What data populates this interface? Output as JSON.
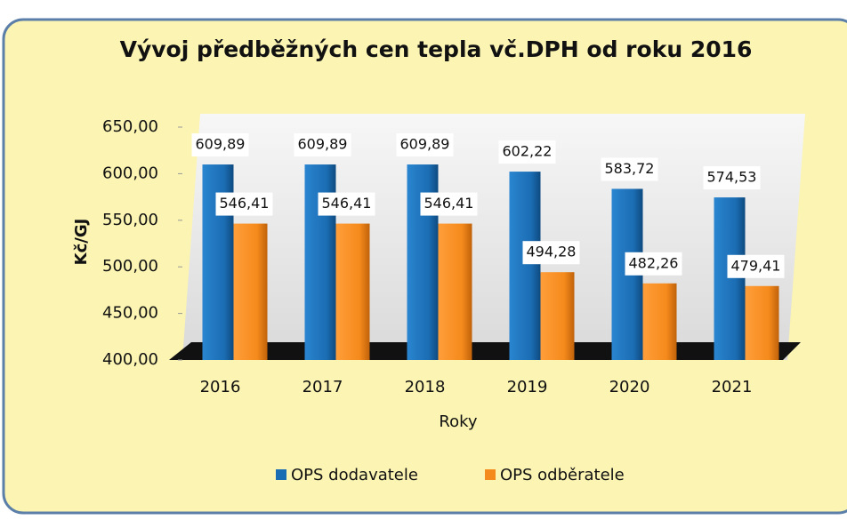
{
  "chart_data": {
    "type": "bar",
    "title": "Vývoj předběžných cen tepla vč.DPH od roku 2016",
    "x_label": "Roky",
    "y_label": "Kč/GJ",
    "categories": [
      "2016",
      "2017",
      "2018",
      "2019",
      "2020",
      "2021"
    ],
    "series": [
      {
        "name": "OPS dodavatele",
        "color": "#1b6db3",
        "values": [
          609.89,
          609.89,
          609.89,
          602.22,
          583.72,
          574.53
        ],
        "value_labels": [
          "609,89",
          "609,89",
          "609,89",
          "602,22",
          "583,72",
          "574,53"
        ]
      },
      {
        "name": "OPS odběratele",
        "color": "#f58a1c",
        "values": [
          546.41,
          546.41,
          546.41,
          494.28,
          482.26,
          479.41
        ],
        "value_labels": [
          "546,41",
          "546,41",
          "546,41",
          "494,28",
          "482,26",
          "479,41"
        ]
      }
    ],
    "ylim": [
      400,
      650
    ],
    "yticks": [
      {
        "value": 400,
        "label": "400,00"
      },
      {
        "value": 450,
        "label": "450,00"
      },
      {
        "value": 500,
        "label": "500,00"
      },
      {
        "value": 550,
        "label": "550,00"
      },
      {
        "value": 600,
        "label": "600,00"
      },
      {
        "value": 650,
        "label": "650,00"
      }
    ],
    "legend": "bottom"
  }
}
